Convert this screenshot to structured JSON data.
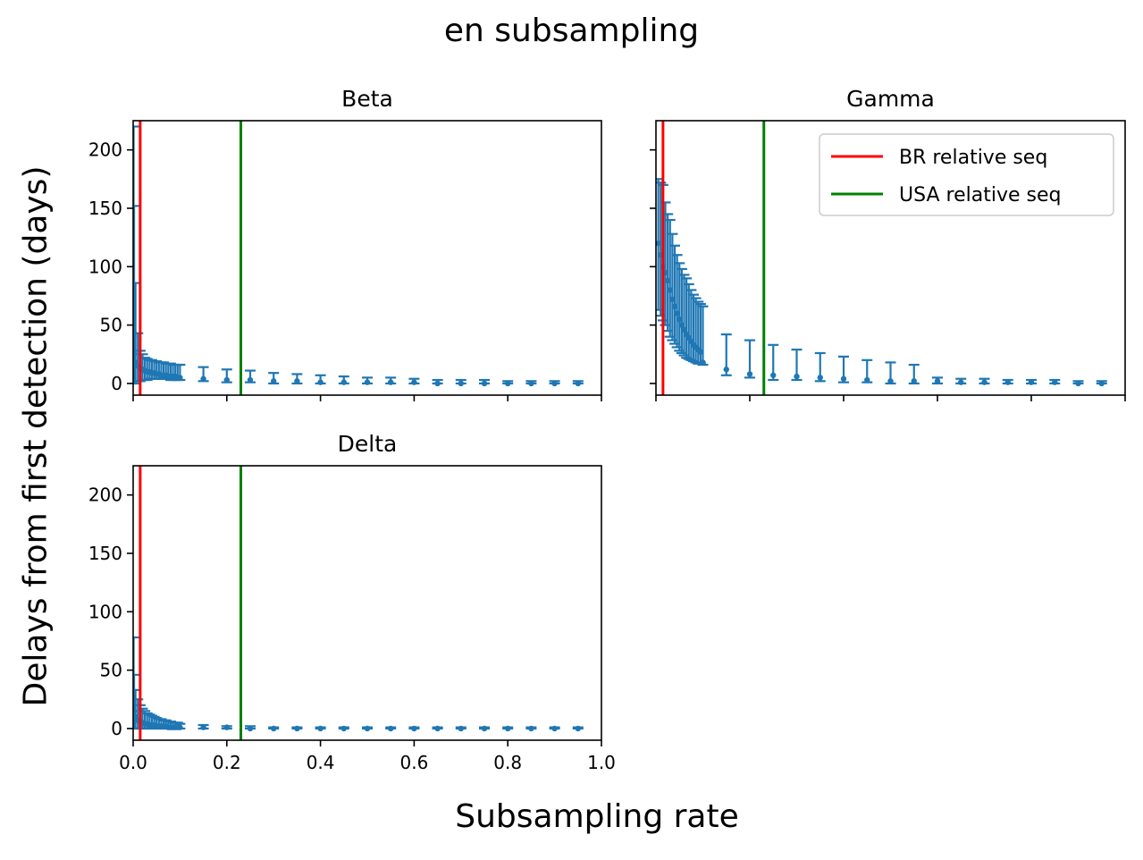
{
  "figure": {
    "suptitle": "en subsampling",
    "xlabel": "Subsampling rate",
    "ylabel": "Delays from first detection (days)"
  },
  "colors": {
    "series": "#1f77b4",
    "br_line": "#ff0000",
    "usa_line": "#008000",
    "axes": "#000000"
  },
  "chart_data": [
    {
      "type": "errorbar",
      "title": "Beta",
      "xlim": [
        0,
        1.0
      ],
      "ylim": [
        -10,
        225
      ],
      "xticks": [
        0.0,
        0.2,
        0.4,
        0.6,
        0.8,
        1.0
      ],
      "xtick_labels_shown": false,
      "yticks": [
        0,
        50,
        100,
        150,
        200
      ],
      "ytick_labels_shown": true,
      "vlines": [
        {
          "x": 0.015,
          "name": "BR relative seq"
        },
        {
          "x": 0.23,
          "name": "USA relative seq"
        }
      ],
      "points": [
        [
          0.001,
          40,
          0,
          220
        ],
        [
          0.002,
          25,
          0,
          152
        ],
        [
          0.005,
          18,
          0,
          86
        ],
        [
          0.01,
          15,
          2,
          43
        ],
        [
          0.015,
          13,
          2,
          28
        ],
        [
          0.02,
          12,
          3,
          25
        ],
        [
          0.025,
          11,
          3,
          22
        ],
        [
          0.03,
          10,
          3,
          21
        ],
        [
          0.035,
          10,
          4,
          20
        ],
        [
          0.04,
          9,
          4,
          20
        ],
        [
          0.045,
          9,
          4,
          19
        ],
        [
          0.05,
          8,
          4,
          19
        ],
        [
          0.055,
          8,
          4,
          18
        ],
        [
          0.06,
          7,
          4,
          18
        ],
        [
          0.065,
          7,
          4,
          18
        ],
        [
          0.07,
          7,
          4,
          17
        ],
        [
          0.075,
          6,
          4,
          17
        ],
        [
          0.08,
          6,
          3,
          17
        ],
        [
          0.085,
          6,
          3,
          16
        ],
        [
          0.09,
          6,
          3,
          16
        ],
        [
          0.095,
          5,
          3,
          16
        ],
        [
          0.1,
          5,
          3,
          16
        ],
        [
          0.15,
          4,
          2,
          14
        ],
        [
          0.2,
          3,
          1,
          12
        ],
        [
          0.25,
          3,
          1,
          11
        ],
        [
          0.3,
          2,
          0,
          9
        ],
        [
          0.35,
          2,
          0,
          8
        ],
        [
          0.4,
          1,
          0,
          7
        ],
        [
          0.45,
          1,
          0,
          6
        ],
        [
          0.5,
          1,
          0,
          5
        ],
        [
          0.55,
          1,
          0,
          5
        ],
        [
          0.6,
          1,
          0,
          4
        ],
        [
          0.65,
          0,
          0,
          3
        ],
        [
          0.7,
          0,
          0,
          3
        ],
        [
          0.75,
          0,
          0,
          3
        ],
        [
          0.8,
          0,
          0,
          2
        ],
        [
          0.85,
          0,
          0,
          2
        ],
        [
          0.9,
          0,
          0,
          2
        ],
        [
          0.95,
          0,
          0,
          2
        ]
      ]
    },
    {
      "type": "errorbar",
      "title": "Gamma",
      "xlim": [
        0,
        1.0
      ],
      "ylim": [
        -10,
        225
      ],
      "xticks": [
        0.0,
        0.2,
        0.4,
        0.6,
        0.8,
        1.0
      ],
      "xtick_labels_shown": false,
      "yticks": [
        0,
        50,
        100,
        150,
        200
      ],
      "ytick_labels_shown": false,
      "vlines": [
        {
          "x": 0.015,
          "name": "BR relative seq"
        },
        {
          "x": 0.23,
          "name": "USA relative seq"
        }
      ],
      "legend": {
        "placement": "upper right",
        "entries": [
          {
            "label": "BR relative seq",
            "color": "#ff0000"
          },
          {
            "label": "USA relative seq",
            "color": "#008000"
          }
        ]
      },
      "points": [
        [
          0.005,
          120,
          63,
          175
        ],
        [
          0.01,
          110,
          58,
          172
        ],
        [
          0.015,
          100,
          54,
          170
        ],
        [
          0.02,
          95,
          50,
          155
        ],
        [
          0.025,
          88,
          45,
          145
        ],
        [
          0.03,
          80,
          40,
          140
        ],
        [
          0.035,
          72,
          37,
          128
        ],
        [
          0.04,
          66,
          34,
          118
        ],
        [
          0.045,
          60,
          31,
          110
        ],
        [
          0.05,
          55,
          28,
          103
        ],
        [
          0.055,
          50,
          26,
          98
        ],
        [
          0.06,
          46,
          24,
          93
        ],
        [
          0.065,
          42,
          22,
          90
        ],
        [
          0.07,
          39,
          21,
          85
        ],
        [
          0.075,
          36,
          20,
          80
        ],
        [
          0.08,
          33,
          19,
          76
        ],
        [
          0.085,
          31,
          18,
          73
        ],
        [
          0.09,
          29,
          17,
          70
        ],
        [
          0.095,
          27,
          17,
          68
        ],
        [
          0.1,
          18,
          16,
          66
        ],
        [
          0.15,
          12,
          7,
          42
        ],
        [
          0.2,
          8,
          5,
          37
        ],
        [
          0.25,
          7,
          3,
          33
        ],
        [
          0.3,
          6,
          3,
          29
        ],
        [
          0.35,
          5,
          2,
          26
        ],
        [
          0.4,
          4,
          1,
          23
        ],
        [
          0.45,
          3,
          1,
          20
        ],
        [
          0.5,
          2,
          0,
          18
        ],
        [
          0.55,
          2,
          0,
          16
        ],
        [
          0.6,
          2,
          0,
          5
        ],
        [
          0.65,
          1,
          0,
          4
        ],
        [
          0.7,
          1,
          0,
          4
        ],
        [
          0.75,
          1,
          0,
          3
        ],
        [
          0.8,
          1,
          0,
          3
        ],
        [
          0.85,
          1,
          0,
          3
        ],
        [
          0.9,
          0,
          0,
          2
        ],
        [
          0.95,
          0,
          0,
          2
        ]
      ]
    },
    {
      "type": "errorbar",
      "title": "Delta",
      "xlim": [
        0,
        1.0
      ],
      "ylim": [
        -10,
        225
      ],
      "xticks": [
        0.0,
        0.2,
        0.4,
        0.6,
        0.8,
        1.0
      ],
      "xtick_labels": [
        "0.0",
        "0.2",
        "0.4",
        "0.6",
        "0.8",
        "1.0"
      ],
      "xtick_labels_shown": true,
      "yticks": [
        0,
        50,
        100,
        150,
        200
      ],
      "ytick_labels_shown": true,
      "vlines": [
        {
          "x": 0.015,
          "name": "BR relative seq"
        },
        {
          "x": 0.23,
          "name": "USA relative seq"
        }
      ],
      "points": [
        [
          0.001,
          20,
          0,
          78
        ],
        [
          0.002,
          15,
          0,
          46
        ],
        [
          0.005,
          10,
          0,
          33
        ],
        [
          0.01,
          7,
          0,
          25
        ],
        [
          0.015,
          6,
          0,
          20
        ],
        [
          0.02,
          5,
          0,
          17
        ],
        [
          0.025,
          4,
          0,
          15
        ],
        [
          0.03,
          4,
          0,
          13
        ],
        [
          0.035,
          3,
          0,
          12
        ],
        [
          0.04,
          3,
          0,
          11
        ],
        [
          0.045,
          3,
          0,
          10
        ],
        [
          0.05,
          2,
          0,
          9
        ],
        [
          0.055,
          2,
          0,
          8
        ],
        [
          0.06,
          2,
          0,
          8
        ],
        [
          0.065,
          2,
          0,
          7
        ],
        [
          0.07,
          2,
          0,
          7
        ],
        [
          0.075,
          1,
          0,
          6
        ],
        [
          0.08,
          1,
          0,
          6
        ],
        [
          0.085,
          1,
          0,
          5
        ],
        [
          0.09,
          1,
          0,
          5
        ],
        [
          0.095,
          1,
          0,
          5
        ],
        [
          0.1,
          1,
          0,
          4
        ],
        [
          0.15,
          1,
          0,
          3
        ],
        [
          0.2,
          1,
          0,
          2
        ],
        [
          0.25,
          0,
          0,
          2
        ],
        [
          0.3,
          0,
          0,
          1
        ],
        [
          0.35,
          0,
          0,
          1
        ],
        [
          0.4,
          0,
          0,
          1
        ],
        [
          0.45,
          0,
          0,
          1
        ],
        [
          0.5,
          0,
          0,
          1
        ],
        [
          0.55,
          0,
          0,
          1
        ],
        [
          0.6,
          0,
          0,
          1
        ],
        [
          0.65,
          0,
          0,
          1
        ],
        [
          0.7,
          0,
          0,
          1
        ],
        [
          0.75,
          0,
          0,
          1
        ],
        [
          0.8,
          0,
          0,
          1
        ],
        [
          0.85,
          0,
          0,
          1
        ],
        [
          0.9,
          0,
          0,
          1
        ],
        [
          0.95,
          0,
          0,
          1
        ]
      ]
    }
  ]
}
